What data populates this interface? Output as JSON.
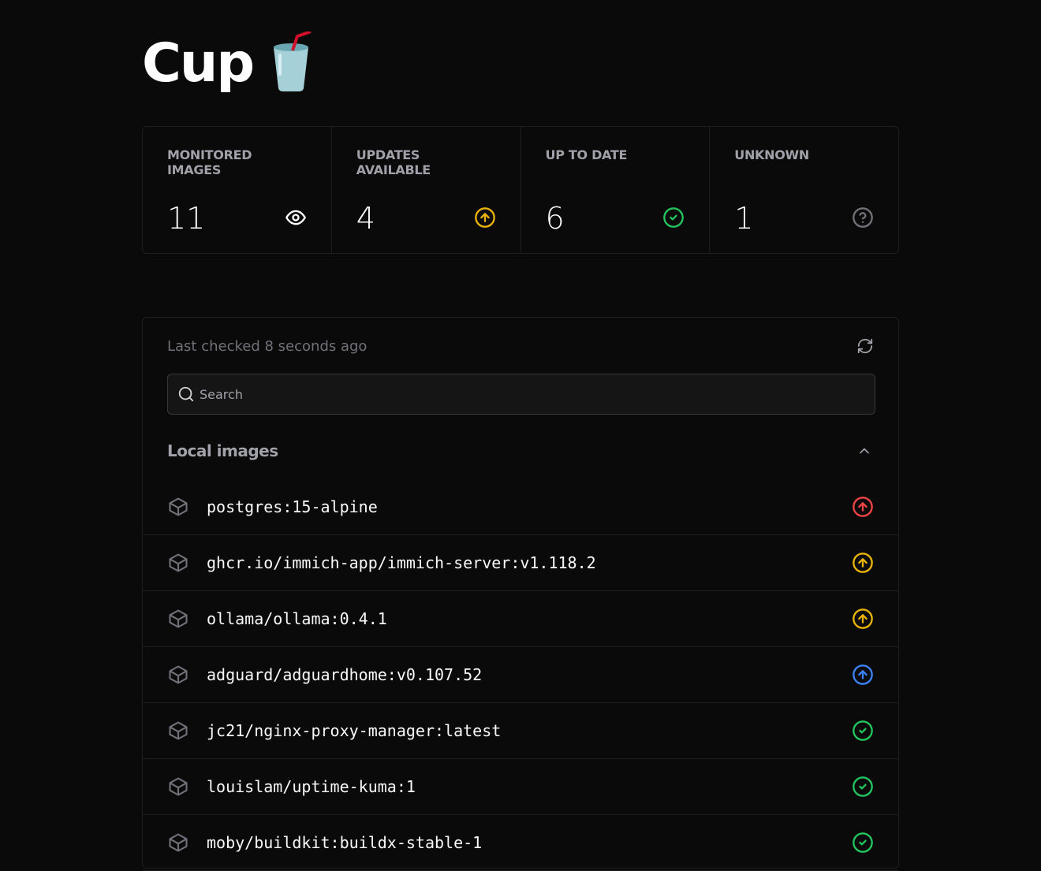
{
  "app": {
    "title": "Cup",
    "logo_emoji": "🥤"
  },
  "stats": [
    {
      "label": "MONITORED IMAGES",
      "value": "11",
      "icon": "eye-icon",
      "color": "#ffffff"
    },
    {
      "label": "UPDATES AVAILABLE",
      "value": "4",
      "icon": "arrow-up-circle-icon",
      "color": "#eab308"
    },
    {
      "label": "UP TO DATE",
      "value": "6",
      "icon": "check-circle-icon",
      "color": "#22c55e"
    },
    {
      "label": "UNKNOWN",
      "value": "1",
      "icon": "question-circle-icon",
      "color": "#71717a"
    }
  ],
  "list": {
    "last_checked": "Last checked 8 seconds ago",
    "search_placeholder": "Search",
    "section_title": "Local images",
    "images": [
      {
        "name": "postgres:15-alpine",
        "status": "major-update",
        "color": "#ef4444"
      },
      {
        "name": "ghcr.io/immich-app/immich-server:v1.118.2",
        "status": "minor-update",
        "color": "#eab308"
      },
      {
        "name": "ollama/ollama:0.4.1",
        "status": "minor-update",
        "color": "#eab308"
      },
      {
        "name": "adguard/adguardhome:v0.107.52",
        "status": "patch-update",
        "color": "#3b82f6"
      },
      {
        "name": "jc21/nginx-proxy-manager:latest",
        "status": "up-to-date",
        "color": "#22c55e"
      },
      {
        "name": "louislam/uptime-kuma:1",
        "status": "up-to-date",
        "color": "#22c55e"
      },
      {
        "name": "moby/buildkit:buildx-stable-1",
        "status": "up-to-date",
        "color": "#22c55e"
      }
    ]
  }
}
